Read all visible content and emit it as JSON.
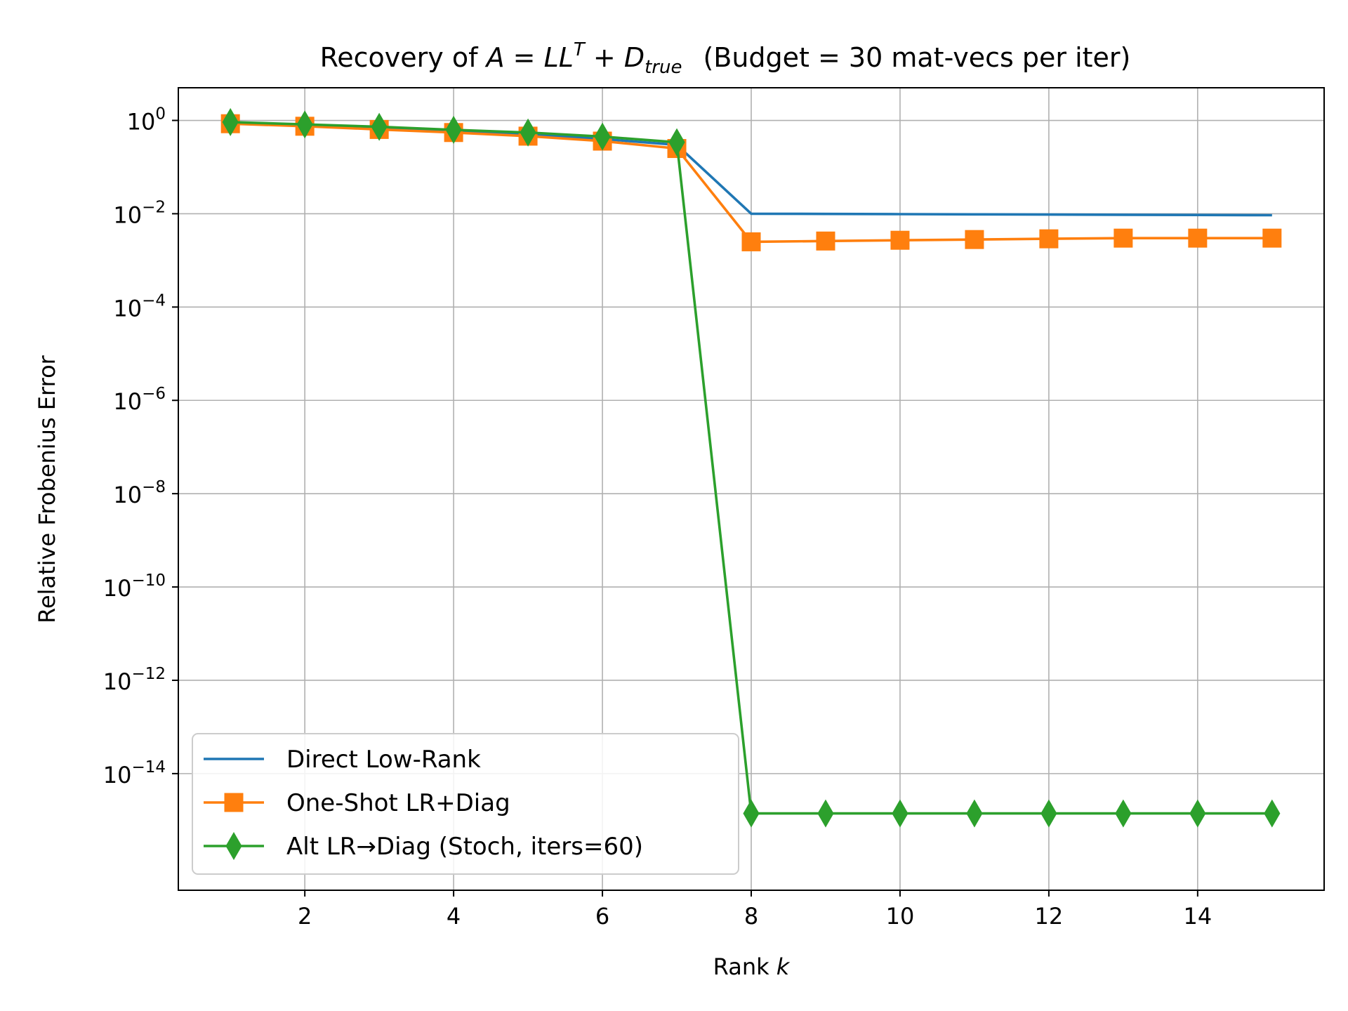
{
  "chart_data": {
    "type": "line",
    "title": {
      "prefix": "Recovery of ",
      "math_A": "A",
      "math_eq": " = ",
      "math_LL": "LL",
      "math_T": "T",
      "math_plus": " + ",
      "math_D": "D",
      "math_true": "true",
      "suffix": "(Budget = 30 mat-vecs per iter)"
    },
    "xlabel": {
      "text": "Rank ",
      "var": "k"
    },
    "ylabel": "Relative Frobenius Error",
    "y_scale": "log",
    "xlim": [
      0.3,
      15.7
    ],
    "ylim_exponents": [
      -16.5,
      0.7
    ],
    "grid": true,
    "legend_position": "lower left",
    "x_ticks": [
      2,
      4,
      6,
      8,
      10,
      12,
      14
    ],
    "y_tick_exponents": [
      0,
      -2,
      -4,
      -6,
      -8,
      -10,
      -12,
      -14
    ],
    "y_tick_base": "10",
    "series": [
      {
        "name": "Direct Low-Rank",
        "color": "#1f77b4",
        "marker": "none",
        "x": [
          1,
          2,
          3,
          4,
          5,
          6,
          7,
          8,
          9,
          10,
          11,
          12,
          13,
          14,
          15
        ],
        "y": [
          0.88,
          0.78,
          0.68,
          0.58,
          0.5,
          0.4,
          0.3,
          0.01,
          0.0099,
          0.0098,
          0.0097,
          0.0096,
          0.0095,
          0.0094,
          0.0093
        ]
      },
      {
        "name": "One-Shot LR+Diag",
        "color": "#ff7f0e",
        "marker": "square",
        "x": [
          1,
          2,
          3,
          4,
          5,
          6,
          7,
          8,
          9,
          10,
          11,
          12,
          13,
          14,
          15
        ],
        "y": [
          0.85,
          0.75,
          0.64,
          0.55,
          0.46,
          0.36,
          0.25,
          0.0025,
          0.0026,
          0.0027,
          0.0028,
          0.0029,
          0.003,
          0.003,
          0.003
        ]
      },
      {
        "name": "Alt LR→Diag (Stoch, iters=60)",
        "color": "#2ca02c",
        "marker": "thin_diamond",
        "x": [
          1,
          2,
          3,
          4,
          5,
          6,
          7,
          8,
          9,
          10,
          11,
          12,
          13,
          14,
          15
        ],
        "y": [
          0.92,
          0.82,
          0.73,
          0.63,
          0.55,
          0.45,
          0.34,
          1.4e-15,
          1.4e-15,
          1.4e-15,
          1.4e-15,
          1.4e-15,
          1.4e-15,
          1.4e-15,
          1.4e-15
        ]
      }
    ]
  }
}
